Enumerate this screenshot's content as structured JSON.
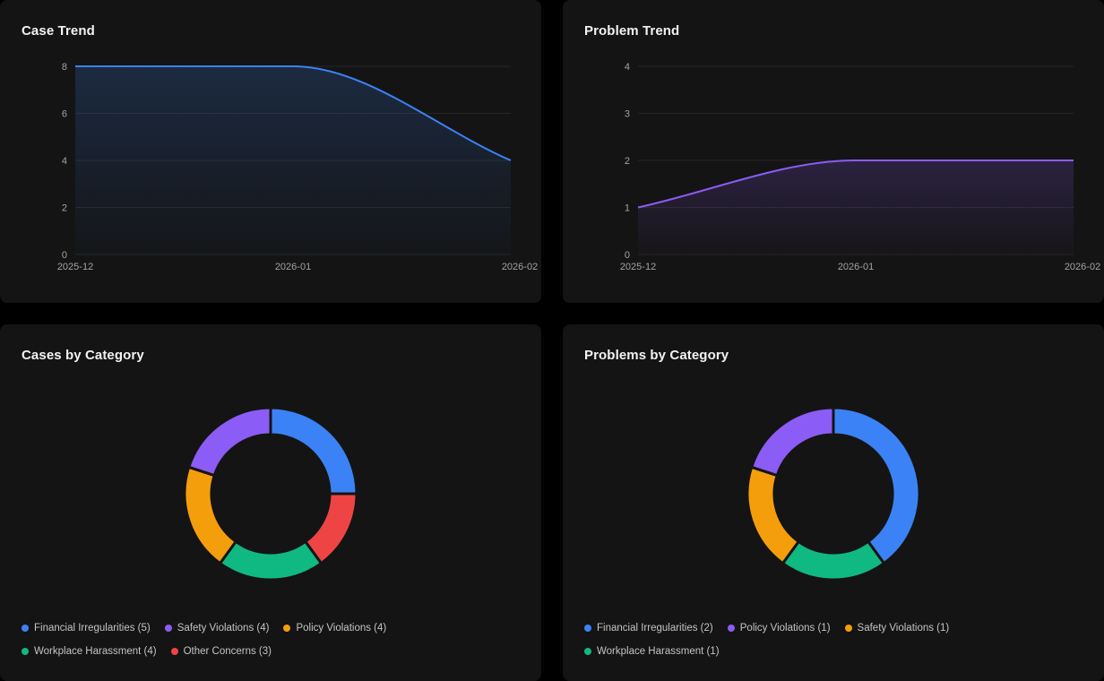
{
  "chart_data": [
    {
      "type": "area",
      "title": "Case Trend",
      "x": [
        "2025-12",
        "2026-01",
        "2026-02"
      ],
      "categories": [
        "2025-12",
        "2026-01",
        "2026-02"
      ],
      "values": [
        8,
        8,
        4
      ],
      "ylim": [
        0,
        8
      ],
      "yticks": [
        0,
        2,
        4,
        6,
        8
      ],
      "xlabel": "",
      "ylabel": "",
      "grid": true,
      "color": "#3b82f6"
    },
    {
      "type": "area",
      "title": "Problem Trend",
      "x": [
        "2025-12",
        "2026-01",
        "2026-02"
      ],
      "categories": [
        "2025-12",
        "2026-01",
        "2026-02"
      ],
      "values": [
        1,
        2,
        2
      ],
      "ylim": [
        0,
        4
      ],
      "yticks": [
        0,
        1,
        2,
        3,
        4
      ],
      "xlabel": "",
      "ylabel": "",
      "grid": true,
      "color": "#8b5cf6"
    },
    {
      "type": "pie",
      "title": "Cases by Category",
      "series": [
        {
          "name": "Financial Irregularities",
          "value": 5,
          "color": "#3b82f6",
          "legend": "Financial Irregularities (5)"
        },
        {
          "name": "Other Concerns",
          "value": 3,
          "color": "#ef4444",
          "legend": "Other Concerns (3)"
        },
        {
          "name": "Workplace Harassment",
          "value": 4,
          "color": "#10b981",
          "legend": "Workplace Harassment (4)"
        },
        {
          "name": "Policy Violations",
          "value": 4,
          "color": "#f59e0b",
          "legend": "Policy Violations (4)"
        },
        {
          "name": "Safety Violations",
          "value": 4,
          "color": "#8b5cf6",
          "legend": "Safety Violations (4)"
        }
      ],
      "legend_order": [
        0,
        4,
        3,
        2,
        1
      ]
    },
    {
      "type": "pie",
      "title": "Problems by Category",
      "series": [
        {
          "name": "Financial Irregularities",
          "value": 2,
          "color": "#3b82f6",
          "legend": "Financial Irregularities (2)"
        },
        {
          "name": "Workplace Harassment",
          "value": 1,
          "color": "#10b981",
          "legend": "Workplace Harassment (1)"
        },
        {
          "name": "Safety Violations",
          "value": 1,
          "color": "#f59e0b",
          "legend": "Safety Violations (1)"
        },
        {
          "name": "Policy Violations",
          "value": 1,
          "color": "#8b5cf6",
          "legend": "Policy Violations (1)"
        }
      ],
      "legend_order": [
        0,
        3,
        2,
        1
      ]
    }
  ]
}
